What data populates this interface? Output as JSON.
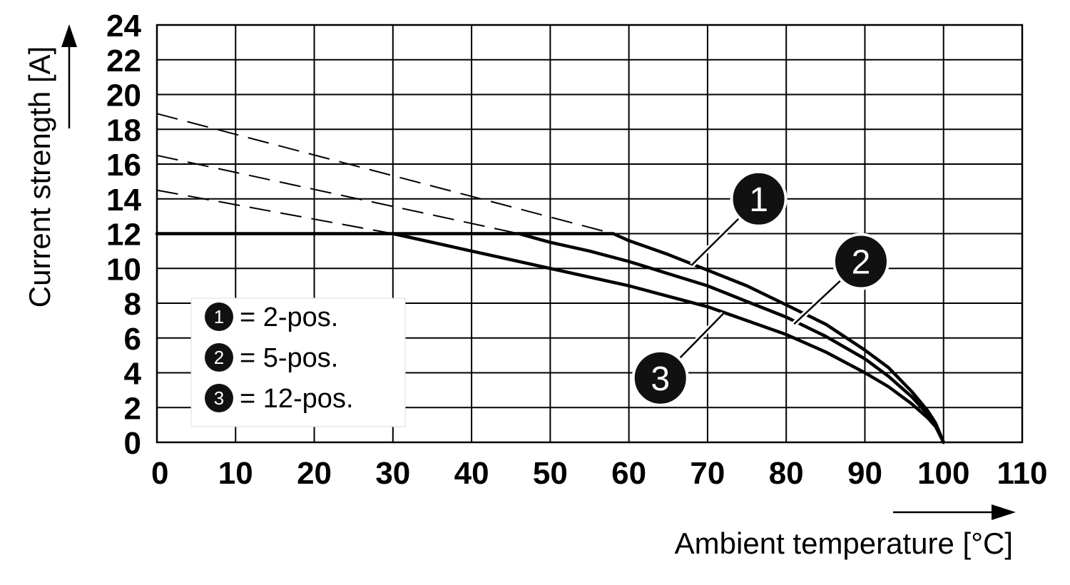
{
  "chart_data": {
    "type": "line",
    "xlabel": "Ambient temperature [°C]",
    "ylabel": "Current strength [A]",
    "xlim": [
      0,
      110
    ],
    "ylim": [
      0,
      24
    ],
    "x_ticks": [
      "0",
      "10",
      "20",
      "30",
      "40",
      "50",
      "60",
      "70",
      "80",
      "90",
      "100",
      "110"
    ],
    "y_ticks": [
      "0",
      "2",
      "4",
      "6",
      "8",
      "10",
      "12",
      "14",
      "16",
      "18",
      "20",
      "22",
      "24"
    ],
    "grid": true,
    "legend_placement": "lower-left",
    "legend": [
      {
        "marker": "1",
        "label": "= 2-pos."
      },
      {
        "marker": "2",
        "label": "= 5-pos."
      },
      {
        "marker": "3",
        "label": "= 12-pos."
      }
    ],
    "limit": {
      "name": "",
      "x": [
        0,
        58
      ],
      "y": [
        12,
        12
      ]
    },
    "series": [
      {
        "marker": "1",
        "x": [
          58,
          60,
          65,
          70,
          75,
          80,
          85,
          90,
          93,
          96,
          98,
          99,
          100
        ],
        "y": [
          12,
          11.6,
          10.8,
          9.9,
          9.0,
          7.9,
          6.8,
          5.3,
          4.3,
          2.9,
          1.8,
          1.1,
          0
        ],
        "extrapolated": {
          "x": [
            0,
            58
          ],
          "y": [
            18.9,
            12
          ]
        }
      },
      {
        "marker": "2",
        "x": [
          46,
          50,
          55,
          60,
          65,
          70,
          75,
          80,
          85,
          90,
          93,
          96,
          98,
          99,
          100
        ],
        "y": [
          12,
          11.5,
          11.0,
          10.4,
          9.7,
          9.0,
          8.1,
          7.2,
          6.1,
          4.8,
          3.8,
          2.6,
          1.6,
          1.0,
          0
        ],
        "extrapolated": {
          "x": [
            0,
            46
          ],
          "y": [
            16.5,
            12
          ]
        }
      },
      {
        "marker": "3",
        "x": [
          30,
          35,
          40,
          45,
          50,
          55,
          60,
          65,
          70,
          75,
          80,
          85,
          90,
          93,
          96,
          98,
          99,
          100
        ],
        "y": [
          12,
          11.5,
          11.0,
          10.5,
          10.0,
          9.5,
          9.0,
          8.4,
          7.8,
          7.0,
          6.2,
          5.2,
          4.0,
          3.2,
          2.2,
          1.4,
          0.9,
          0
        ],
        "extrapolated": {
          "x": [
            0,
            30
          ],
          "y": [
            14.5,
            12
          ]
        }
      }
    ],
    "callouts": [
      {
        "marker": "1",
        "x": 76.5,
        "y": 14,
        "leader_to": [
          68,
          10.2
        ]
      },
      {
        "marker": "2",
        "x": 89.5,
        "y": 10.4,
        "leader_to": [
          81,
          6.8
        ]
      },
      {
        "marker": "3",
        "x": 64,
        "y": 3.7,
        "leader_to": [
          72,
          7.4
        ]
      }
    ]
  }
}
